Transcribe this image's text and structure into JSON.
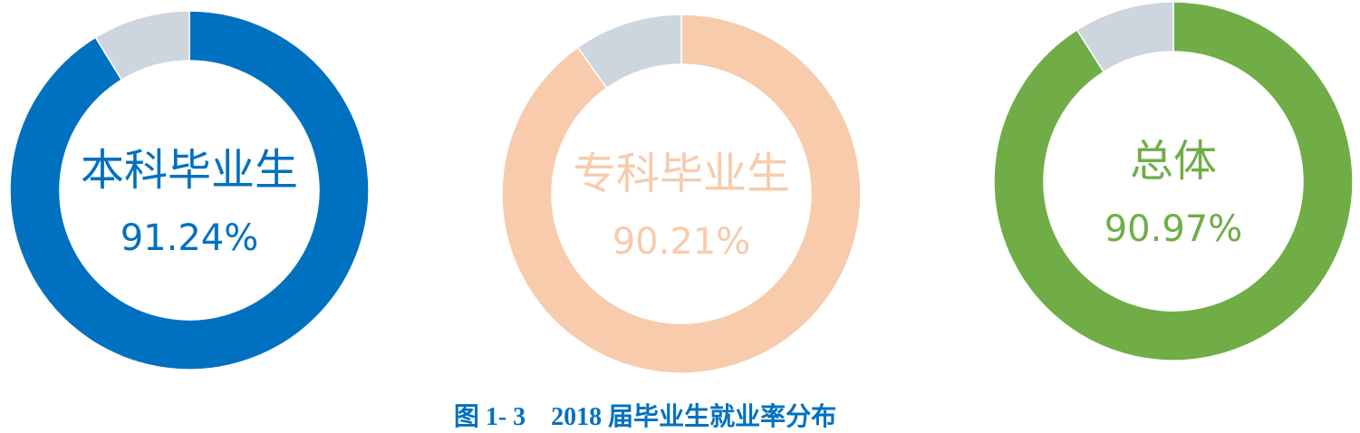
{
  "chart_data": [
    {
      "type": "pie",
      "donut": true,
      "label": "本科毕业生",
      "value_text": "91.24%",
      "values": [
        91.24,
        8.76
      ],
      "colors": [
        "#0070c0",
        "#cdd5df"
      ]
    },
    {
      "type": "pie",
      "donut": true,
      "label": "专科毕业生",
      "value_text": "90.21%",
      "values": [
        90.21,
        9.79
      ],
      "colors": [
        "#f7cbac",
        "#cdd5df"
      ]
    },
    {
      "type": "pie",
      "donut": true,
      "label": "总体",
      "value_text": "90.97%",
      "values": [
        90.97,
        9.03
      ],
      "colors": [
        "#70ad47",
        "#cdd5df"
      ]
    }
  ],
  "caption": "图 1- 3    2018 届毕业生就业率分布"
}
